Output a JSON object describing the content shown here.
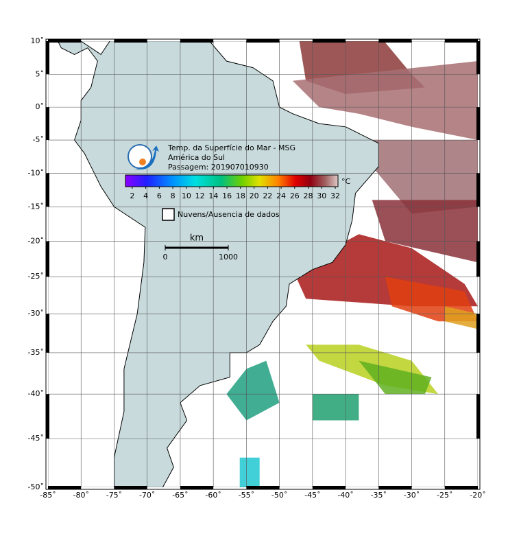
{
  "header": {
    "title": "Temp. da Superfície do Mar - MSG",
    "region": "América do Sul",
    "pass": "Passagem: 201907010930"
  },
  "colorbar": {
    "unit": "°C",
    "range": [
      1,
      32.4
    ],
    "ticks": [
      2,
      4,
      6,
      8,
      10,
      12,
      14,
      16,
      18,
      20,
      22,
      24,
      26,
      28,
      30,
      32
    ]
  },
  "legend": {
    "no_data": "Nuvens/Ausencia de dados"
  },
  "scale_bar": {
    "unit": "km",
    "ticks": [
      0,
      1000
    ]
  },
  "map": {
    "xlim": [
      -85,
      -20
    ],
    "ylim": [
      -50,
      10
    ],
    "xticks": [
      {
        "value": -85,
        "label": "-85˚"
      },
      {
        "value": -80,
        "label": "-80˚"
      },
      {
        "value": -75,
        "label": "-75˚"
      },
      {
        "value": -70,
        "label": "-70˚"
      },
      {
        "value": -65,
        "label": "-65˚"
      },
      {
        "value": -60,
        "label": "-60˚"
      },
      {
        "value": -55,
        "label": "-55˚"
      },
      {
        "value": -50,
        "label": "-50˚"
      },
      {
        "value": -45,
        "label": "-45˚"
      },
      {
        "value": -40,
        "label": "-40˚"
      },
      {
        "value": -35,
        "label": "-35˚"
      },
      {
        "value": -30,
        "label": "-30˚"
      },
      {
        "value": -25,
        "label": "-25˚"
      },
      {
        "value": -20,
        "label": "-20˚"
      }
    ],
    "yticks": [
      {
        "value": 10,
        "label": "10˚"
      },
      {
        "value": 5,
        "label": "5˚"
      },
      {
        "value": 0,
        "label": "0˚"
      },
      {
        "value": -5,
        "label": "-5˚"
      },
      {
        "value": -10,
        "label": "-10˚"
      },
      {
        "value": -15,
        "label": "-15˚"
      },
      {
        "value": -20,
        "label": "-20˚"
      },
      {
        "value": -25,
        "label": "-25˚"
      },
      {
        "value": -30,
        "label": "-30˚"
      },
      {
        "value": -35,
        "label": "-35˚"
      },
      {
        "value": -40,
        "label": "-40˚"
      },
      {
        "value": -45,
        "label": "-45˚"
      },
      {
        "value": -50,
        "label": "-50˚"
      }
    ]
  }
}
